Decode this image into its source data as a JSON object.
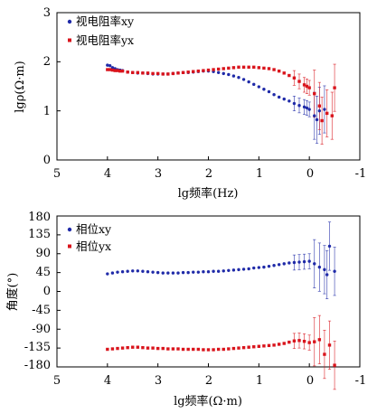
{
  "chart_data": [
    {
      "type": "scatter",
      "xlabel": "lg频率(Hz)",
      "ylabel": "lgρ(Ω·m)",
      "xlim": [
        5,
        -1
      ],
      "ylim": [
        0,
        3
      ],
      "x_reversed": true,
      "xticks": [
        "5",
        "4",
        "3",
        "2",
        "1",
        "0",
        "-1"
      ],
      "yticks": [
        "0",
        "1",
        "2",
        "3"
      ],
      "legend_position": "top-left",
      "series": [
        {
          "name": "视电阻率xy",
          "color": "#1f2aa8",
          "marker": "dot",
          "points": [
            [
              4.0,
              1.93
            ],
            [
              3.95,
              1.92
            ],
            [
              3.9,
              1.88
            ],
            [
              3.85,
              1.86
            ],
            [
              3.8,
              1.84
            ],
            [
              3.75,
              1.83
            ],
            [
              3.7,
              1.82
            ],
            [
              3.6,
              1.79
            ],
            [
              3.5,
              1.78
            ],
            [
              3.4,
              1.77
            ],
            [
              3.3,
              1.77
            ],
            [
              3.2,
              1.76
            ],
            [
              3.1,
              1.75
            ],
            [
              3.0,
              1.75
            ],
            [
              2.9,
              1.75
            ],
            [
              2.8,
              1.75
            ],
            [
              2.7,
              1.76
            ],
            [
              2.6,
              1.77
            ],
            [
              2.5,
              1.78
            ],
            [
              2.4,
              1.78
            ],
            [
              2.3,
              1.79
            ],
            [
              2.2,
              1.8
            ],
            [
              2.1,
              1.81
            ],
            [
              2.0,
              1.81
            ],
            [
              1.9,
              1.8
            ],
            [
              1.8,
              1.78
            ],
            [
              1.7,
              1.76
            ],
            [
              1.6,
              1.74
            ],
            [
              1.5,
              1.71
            ],
            [
              1.4,
              1.68
            ],
            [
              1.3,
              1.64
            ],
            [
              1.2,
              1.59
            ],
            [
              1.1,
              1.54
            ],
            [
              1.0,
              1.49
            ],
            [
              0.9,
              1.44
            ],
            [
              0.8,
              1.39
            ],
            [
              0.7,
              1.33
            ],
            [
              0.6,
              1.28
            ],
            [
              0.5,
              1.24
            ],
            [
              0.4,
              1.2
            ],
            [
              0.3,
              1.15
            ],
            [
              0.2,
              1.11
            ],
            [
              0.1,
              1.08
            ],
            [
              0.05,
              1.06
            ],
            [
              0.0,
              1.03
            ],
            [
              -0.1,
              0.9
            ],
            [
              -0.15,
              0.82
            ],
            [
              -0.2,
              1.0
            ],
            [
              -0.3,
              1.03
            ]
          ]
        },
        {
          "name": "视电阻率yx",
          "color": "#d9141c",
          "marker": "square",
          "points": [
            [
              4.0,
              1.84
            ],
            [
              3.95,
              1.84
            ],
            [
              3.9,
              1.83
            ],
            [
              3.85,
              1.82
            ],
            [
              3.8,
              1.82
            ],
            [
              3.75,
              1.81
            ],
            [
              3.7,
              1.81
            ],
            [
              3.6,
              1.79
            ],
            [
              3.5,
              1.78
            ],
            [
              3.4,
              1.78
            ],
            [
              3.3,
              1.77
            ],
            [
              3.2,
              1.77
            ],
            [
              3.1,
              1.76
            ],
            [
              3.0,
              1.76
            ],
            [
              2.9,
              1.75
            ],
            [
              2.8,
              1.75
            ],
            [
              2.7,
              1.76
            ],
            [
              2.6,
              1.77
            ],
            [
              2.5,
              1.78
            ],
            [
              2.4,
              1.79
            ],
            [
              2.3,
              1.8
            ],
            [
              2.2,
              1.81
            ],
            [
              2.1,
              1.82
            ],
            [
              2.0,
              1.83
            ],
            [
              1.9,
              1.84
            ],
            [
              1.8,
              1.85
            ],
            [
              1.7,
              1.86
            ],
            [
              1.6,
              1.87
            ],
            [
              1.5,
              1.88
            ],
            [
              1.4,
              1.89
            ],
            [
              1.3,
              1.89
            ],
            [
              1.2,
              1.89
            ],
            [
              1.1,
              1.89
            ],
            [
              1.0,
              1.88
            ],
            [
              0.9,
              1.87
            ],
            [
              0.8,
              1.86
            ],
            [
              0.7,
              1.84
            ],
            [
              0.6,
              1.81
            ],
            [
              0.5,
              1.77
            ],
            [
              0.4,
              1.72
            ],
            [
              0.3,
              1.67
            ],
            [
              0.2,
              1.6
            ],
            [
              0.1,
              1.53
            ],
            [
              0.05,
              1.5
            ],
            [
              0.0,
              1.47
            ],
            [
              -0.1,
              1.35
            ],
            [
              -0.2,
              1.1
            ],
            [
              -0.25,
              0.8
            ],
            [
              -0.35,
              0.95
            ],
            [
              -0.45,
              0.9
            ],
            [
              -0.5,
              1.47
            ]
          ]
        }
      ]
    },
    {
      "type": "scatter",
      "xlabel": "lg频率(Ω·m)",
      "ylabel": "角度(°)",
      "xlim": [
        5,
        -1
      ],
      "ylim": [
        -180,
        180
      ],
      "x_reversed": true,
      "xticks": [
        "5",
        "4",
        "3",
        "2",
        "1",
        "0",
        "-1"
      ],
      "yticks": [
        "180",
        "135",
        "90",
        "45",
        "0",
        "-45",
        "-90",
        "-135",
        "-180"
      ],
      "legend_position": "top-left",
      "series": [
        {
          "name": "相位xy",
          "color": "#1f2aa8",
          "marker": "dot",
          "points": [
            [
              4.0,
              42
            ],
            [
              3.9,
              44
            ],
            [
              3.8,
              46
            ],
            [
              3.7,
              47
            ],
            [
              3.6,
              48
            ],
            [
              3.5,
              49
            ],
            [
              3.4,
              49
            ],
            [
              3.3,
              48
            ],
            [
              3.2,
              47
            ],
            [
              3.1,
              46
            ],
            [
              3.0,
              45
            ],
            [
              2.9,
              44
            ],
            [
              2.8,
              44
            ],
            [
              2.7,
              44
            ],
            [
              2.6,
              44
            ],
            [
              2.5,
              45
            ],
            [
              2.4,
              45
            ],
            [
              2.3,
              46
            ],
            [
              2.2,
              46
            ],
            [
              2.1,
              47
            ],
            [
              2.0,
              47
            ],
            [
              1.9,
              48
            ],
            [
              1.8,
              48
            ],
            [
              1.7,
              49
            ],
            [
              1.6,
              50
            ],
            [
              1.5,
              51
            ],
            [
              1.4,
              52
            ],
            [
              1.3,
              53
            ],
            [
              1.2,
              54
            ],
            [
              1.1,
              56
            ],
            [
              1.0,
              57
            ],
            [
              0.9,
              58
            ],
            [
              0.8,
              60
            ],
            [
              0.7,
              62
            ],
            [
              0.6,
              64
            ],
            [
              0.5,
              66
            ],
            [
              0.4,
              68
            ],
            [
              0.3,
              69
            ],
            [
              0.2,
              70
            ],
            [
              0.1,
              71
            ],
            [
              0.0,
              72
            ],
            [
              -0.1,
              66
            ],
            [
              -0.2,
              58
            ],
            [
              -0.3,
              52
            ],
            [
              -0.35,
              40
            ],
            [
              -0.4,
              108
            ],
            [
              -0.5,
              48
            ]
          ]
        },
        {
          "name": "相位yx",
          "color": "#d9141c",
          "marker": "square",
          "points": [
            [
              4.0,
              -138
            ],
            [
              3.9,
              -137
            ],
            [
              3.8,
              -136
            ],
            [
              3.7,
              -135
            ],
            [
              3.6,
              -134
            ],
            [
              3.5,
              -133
            ],
            [
              3.4,
              -133
            ],
            [
              3.3,
              -134
            ],
            [
              3.2,
              -135
            ],
            [
              3.1,
              -135
            ],
            [
              3.0,
              -136
            ],
            [
              2.9,
              -136
            ],
            [
              2.8,
              -137
            ],
            [
              2.7,
              -137
            ],
            [
              2.6,
              -137
            ],
            [
              2.5,
              -138
            ],
            [
              2.4,
              -138
            ],
            [
              2.3,
              -138
            ],
            [
              2.2,
              -138
            ],
            [
              2.1,
              -139
            ],
            [
              2.0,
              -139
            ],
            [
              1.9,
              -139
            ],
            [
              1.8,
              -138
            ],
            [
              1.7,
              -138
            ],
            [
              1.6,
              -137
            ],
            [
              1.5,
              -136
            ],
            [
              1.4,
              -135
            ],
            [
              1.3,
              -134
            ],
            [
              1.2,
              -133
            ],
            [
              1.1,
              -132
            ],
            [
              1.0,
              -131
            ],
            [
              0.9,
              -130
            ],
            [
              0.8,
              -129
            ],
            [
              0.7,
              -128
            ],
            [
              0.6,
              -126
            ],
            [
              0.5,
              -124
            ],
            [
              0.4,
              -121
            ],
            [
              0.3,
              -118
            ],
            [
              0.2,
              -117
            ],
            [
              0.1,
              -119
            ],
            [
              0.0,
              -122
            ],
            [
              -0.1,
              -120
            ],
            [
              -0.2,
              -115
            ],
            [
              -0.3,
              -150
            ],
            [
              -0.4,
              -128
            ],
            [
              -0.5,
              -176
            ]
          ]
        }
      ]
    }
  ]
}
